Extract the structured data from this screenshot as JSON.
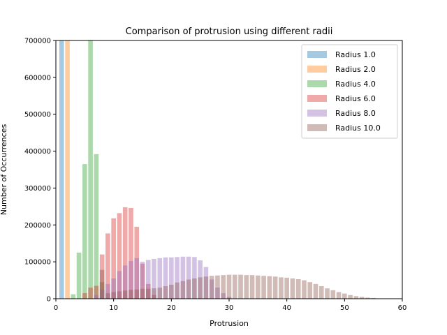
{
  "chart_data": {
    "type": "bar",
    "title": "Comparison of protrusion using different radii",
    "xlabel": "Protrusion",
    "ylabel": "Number of Occurrences",
    "xlim": [
      0,
      60
    ],
    "ylim": [
      0,
      700000
    ],
    "x_ticks": [
      0,
      10,
      20,
      30,
      40,
      50,
      60
    ],
    "y_ticks": [
      0,
      100000,
      200000,
      300000,
      400000,
      500000,
      600000,
      700000
    ],
    "grid": false,
    "legend_position": "top-right",
    "bar_width": 0.8,
    "alpha": 0.4,
    "series": [
      {
        "name": "Radius 1.0",
        "color": "#1f77b4",
        "x": [
          1
        ],
        "values": [
          700000
        ]
      },
      {
        "name": "Radius 2.0",
        "color": "#ff7f0e",
        "x": [
          2
        ],
        "values": [
          700000
        ]
      },
      {
        "name": "Radius 4.0",
        "color": "#2ca02c",
        "x": [
          3,
          4,
          5,
          6,
          7,
          8
        ],
        "values": [
          12000,
          125000,
          365000,
          700000,
          392000,
          45000
        ]
      },
      {
        "name": "Radius 6.0",
        "color": "#d62728",
        "x": [
          5,
          6,
          7,
          8,
          9,
          10,
          11,
          12,
          13,
          14,
          15,
          16,
          17
        ],
        "values": [
          15000,
          30000,
          35000,
          120000,
          177000,
          218000,
          232000,
          248000,
          246000,
          195000,
          95000,
          40000,
          10000
        ]
      },
      {
        "name": "Radius 8.0",
        "color": "#9467bd",
        "x": [
          7,
          8,
          9,
          10,
          11,
          12,
          13,
          14,
          15,
          16,
          17,
          18,
          19,
          20,
          21,
          22,
          23,
          24,
          25,
          26,
          27,
          28,
          29,
          30
        ],
        "values": [
          10000,
          25000,
          40000,
          55000,
          75000,
          90000,
          102000,
          110000,
          100000,
          105000,
          108000,
          110000,
          112000,
          112000,
          113000,
          114000,
          114000,
          113000,
          104000,
          86000,
          52000,
          30000,
          15000,
          5000
        ]
      },
      {
        "name": "Radius 10.0",
        "color": "#8c564b",
        "x": [
          8,
          9,
          10,
          11,
          12,
          13,
          14,
          15,
          16,
          17,
          18,
          19,
          20,
          21,
          22,
          23,
          24,
          25,
          26,
          27,
          28,
          29,
          30,
          31,
          32,
          33,
          34,
          35,
          36,
          37,
          38,
          39,
          40,
          41,
          42,
          43,
          44,
          45,
          46,
          47,
          48,
          49,
          50,
          51,
          52,
          53,
          54,
          55
        ],
        "values": [
          78000,
          15000,
          18000,
          20000,
          22000,
          24000,
          25000,
          27000,
          27000,
          28000,
          30000,
          34000,
          38000,
          44000,
          48000,
          52000,
          55000,
          58000,
          60000,
          62000,
          63000,
          64000,
          65000,
          65000,
          65000,
          64000,
          64000,
          63000,
          62000,
          61000,
          60000,
          58000,
          57000,
          55000,
          53000,
          50000,
          45000,
          40000,
          34000,
          28000,
          23000,
          18000,
          14000,
          10000,
          7000,
          5000,
          3000,
          2000
        ]
      }
    ]
  }
}
